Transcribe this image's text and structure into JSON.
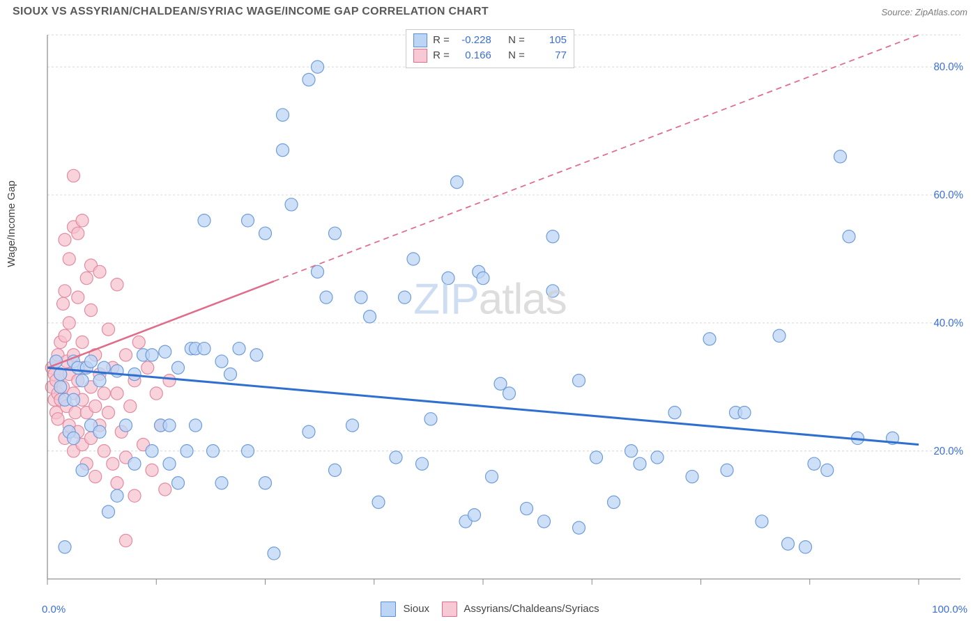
{
  "title": "SIOUX VS ASSYRIAN/CHALDEAN/SYRIAC WAGE/INCOME GAP CORRELATION CHART",
  "source": "Source: ZipAtlas.com",
  "ylabel": "Wage/Income Gap",
  "watermark": {
    "part1": "ZIP",
    "part2": "atlas"
  },
  "axes": {
    "xlim": [
      0,
      100
    ],
    "ylim": [
      0,
      85
    ],
    "x_tick_label_min": "0.0%",
    "x_tick_label_max": "100.0%",
    "y_grid": [
      20,
      40,
      60,
      80
    ],
    "y_tick_labels": [
      "20.0%",
      "40.0%",
      "60.0%",
      "80.0%"
    ],
    "x_minor_ticks": [
      0,
      12.5,
      25,
      37.5,
      50,
      62.5,
      75,
      87.5,
      100
    ],
    "grid_color": "#d8d8d8",
    "axis_color": "#888888",
    "tick_label_color": "#3b6fd6",
    "tick_fontsize": 15
  },
  "series": {
    "a": {
      "label": "Sioux",
      "swatch_fill": "#bcd5f5",
      "swatch_border": "#5a8ddb",
      "marker_fill": "#bcd5f5",
      "marker_stroke": "#6f9cd9",
      "marker_opacity": 0.75,
      "marker_r": 9,
      "trend": {
        "color": "#2f6fd0",
        "width": 3,
        "x1": 0,
        "y1": 33,
        "x2": 100,
        "y2": 21,
        "dash_after_x": null
      },
      "r_value": "-0.228",
      "n_value": "105",
      "points": [
        [
          1,
          34
        ],
        [
          1.5,
          30
        ],
        [
          1.5,
          32
        ],
        [
          2,
          5
        ],
        [
          2,
          28
        ],
        [
          2.5,
          23
        ],
        [
          3,
          28
        ],
        [
          3,
          34
        ],
        [
          3,
          22
        ],
        [
          3.5,
          33
        ],
        [
          4,
          31
        ],
        [
          4,
          17
        ],
        [
          4.5,
          33
        ],
        [
          5,
          34
        ],
        [
          5,
          24
        ],
        [
          6,
          31
        ],
        [
          6,
          23
        ],
        [
          6.5,
          33
        ],
        [
          7,
          10.5
        ],
        [
          8,
          32.5
        ],
        [
          8,
          13
        ],
        [
          9,
          24
        ],
        [
          10,
          18
        ],
        [
          10,
          32
        ],
        [
          11,
          35
        ],
        [
          12,
          35
        ],
        [
          12,
          20
        ],
        [
          13,
          24
        ],
        [
          13.5,
          35.5
        ],
        [
          14,
          18
        ],
        [
          14,
          24
        ],
        [
          15,
          33
        ],
        [
          15,
          15
        ],
        [
          16,
          20
        ],
        [
          16.5,
          36
        ],
        [
          17,
          24
        ],
        [
          17,
          36
        ],
        [
          18,
          56
        ],
        [
          18,
          36
        ],
        [
          19,
          20
        ],
        [
          20,
          34
        ],
        [
          20,
          15
        ],
        [
          21,
          32
        ],
        [
          22,
          36
        ],
        [
          23,
          20
        ],
        [
          23,
          56
        ],
        [
          24,
          35
        ],
        [
          25,
          15
        ],
        [
          25,
          54
        ],
        [
          26,
          4
        ],
        [
          27,
          67
        ],
        [
          27,
          72.5
        ],
        [
          28,
          58.5
        ],
        [
          30,
          23
        ],
        [
          30,
          78
        ],
        [
          31,
          48
        ],
        [
          31,
          80
        ],
        [
          32,
          44
        ],
        [
          33,
          54
        ],
        [
          33,
          17
        ],
        [
          35,
          24
        ],
        [
          36,
          44
        ],
        [
          37,
          41
        ],
        [
          38,
          12
        ],
        [
          40,
          19
        ],
        [
          41,
          44
        ],
        [
          42,
          50
        ],
        [
          43,
          18
        ],
        [
          44,
          25
        ],
        [
          46,
          47
        ],
        [
          47,
          62
        ],
        [
          48,
          9
        ],
        [
          49,
          10
        ],
        [
          49.5,
          48
        ],
        [
          50,
          47
        ],
        [
          51,
          16
        ],
        [
          52,
          30.5
        ],
        [
          53,
          29
        ],
        [
          55,
          11
        ],
        [
          57,
          9
        ],
        [
          58,
          45
        ],
        [
          58,
          53.5
        ],
        [
          61,
          8
        ],
        [
          61,
          31
        ],
        [
          63,
          19
        ],
        [
          65,
          12
        ],
        [
          67,
          20
        ],
        [
          68,
          18
        ],
        [
          70,
          19
        ],
        [
          72,
          26
        ],
        [
          74,
          16
        ],
        [
          76,
          37.5
        ],
        [
          78,
          17
        ],
        [
          79,
          26
        ],
        [
          80,
          26
        ],
        [
          82,
          9
        ],
        [
          84,
          38
        ],
        [
          85,
          5.5
        ],
        [
          87,
          5
        ],
        [
          88,
          18
        ],
        [
          89.5,
          17
        ],
        [
          91,
          66
        ],
        [
          92,
          53.5
        ],
        [
          93,
          22
        ],
        [
          97,
          22
        ]
      ]
    },
    "b": {
      "label": "Assyrians/Chaldeans/Syriacs",
      "swatch_fill": "#f7c9d4",
      "swatch_border": "#e06c8a",
      "marker_fill": "#f7c0cd",
      "marker_stroke": "#e48aa0",
      "marker_opacity": 0.7,
      "marker_r": 9,
      "trend": {
        "color": "#e06c8a",
        "width": 2.5,
        "x1": 0,
        "y1": 33,
        "x2": 100,
        "y2": 85,
        "dash_after_x": 26
      },
      "r_value": "0.166",
      "n_value": "77",
      "points": [
        [
          0.5,
          30
        ],
        [
          0.5,
          33
        ],
        [
          0.8,
          28
        ],
        [
          0.8,
          32
        ],
        [
          1,
          26
        ],
        [
          1,
          34
        ],
        [
          1,
          31
        ],
        [
          1.2,
          29
        ],
        [
          1.2,
          35
        ],
        [
          1.2,
          25
        ],
        [
          1.5,
          28
        ],
        [
          1.5,
          37
        ],
        [
          1.5,
          32
        ],
        [
          1.8,
          30
        ],
        [
          1.8,
          43
        ],
        [
          2,
          22
        ],
        [
          2,
          38
        ],
        [
          2,
          45
        ],
        [
          2,
          53
        ],
        [
          2.2,
          27
        ],
        [
          2.2,
          34
        ],
        [
          2.5,
          24
        ],
        [
          2.5,
          32
        ],
        [
          2.5,
          40
        ],
        [
          2.5,
          50
        ],
        [
          3,
          20
        ],
        [
          3,
          29
        ],
        [
          3,
          35
        ],
        [
          3,
          55
        ],
        [
          3,
          63
        ],
        [
          3.2,
          26
        ],
        [
          3.5,
          23
        ],
        [
          3.5,
          31
        ],
        [
          3.5,
          44
        ],
        [
          3.5,
          54
        ],
        [
          4,
          21
        ],
        [
          4,
          28
        ],
        [
          4,
          37
        ],
        [
          4,
          56
        ],
        [
          4.2,
          33
        ],
        [
          4.5,
          18
        ],
        [
          4.5,
          26
        ],
        [
          4.5,
          47
        ],
        [
          5,
          22
        ],
        [
          5,
          30
        ],
        [
          5,
          42
        ],
        [
          5,
          49
        ],
        [
          5.5,
          16
        ],
        [
          5.5,
          27
        ],
        [
          5.5,
          35
        ],
        [
          6,
          24
        ],
        [
          6,
          32
        ],
        [
          6,
          48
        ],
        [
          6.5,
          20
        ],
        [
          6.5,
          29
        ],
        [
          7,
          26
        ],
        [
          7,
          39
        ],
        [
          7.5,
          18
        ],
        [
          7.5,
          33
        ],
        [
          8,
          15
        ],
        [
          8,
          29
        ],
        [
          8,
          46
        ],
        [
          8.5,
          23
        ],
        [
          9,
          19
        ],
        [
          9,
          35
        ],
        [
          9.5,
          27
        ],
        [
          10,
          13
        ],
        [
          10,
          31
        ],
        [
          10.5,
          37
        ],
        [
          11,
          21
        ],
        [
          11.5,
          33
        ],
        [
          12,
          17
        ],
        [
          12.5,
          29
        ],
        [
          13,
          24
        ],
        [
          13.5,
          14
        ],
        [
          14,
          31
        ],
        [
          9,
          6
        ]
      ]
    }
  },
  "rbox": {
    "r_label": "R =",
    "n_label": "N ="
  },
  "plot_bg": "#ffffff"
}
